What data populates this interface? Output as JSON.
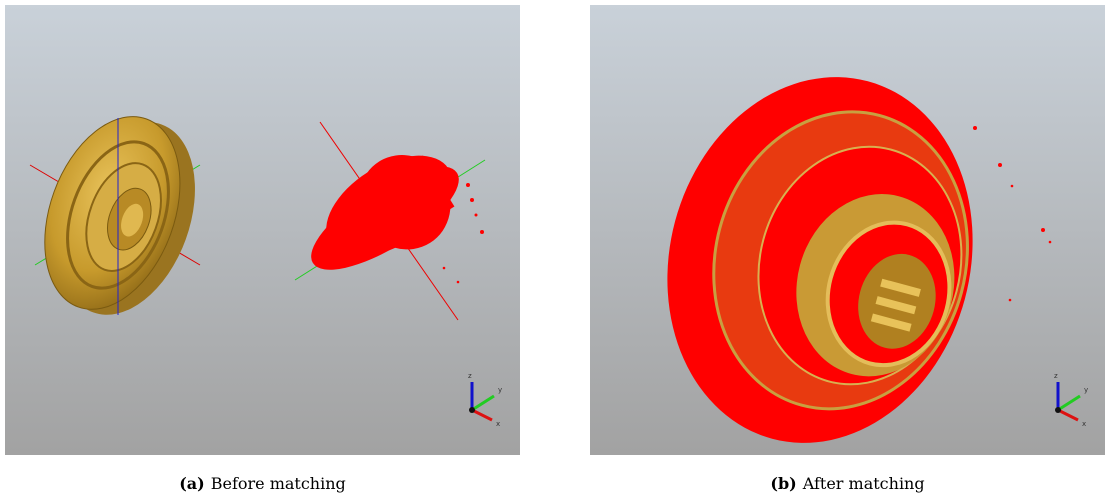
{
  "panels": [
    {
      "label": "(a)",
      "caption": "Before matching",
      "axes": [
        "z",
        "y",
        "x"
      ]
    },
    {
      "label": "(b)",
      "caption": "After matching",
      "axes": [
        "z",
        "y",
        "x"
      ]
    }
  ]
}
